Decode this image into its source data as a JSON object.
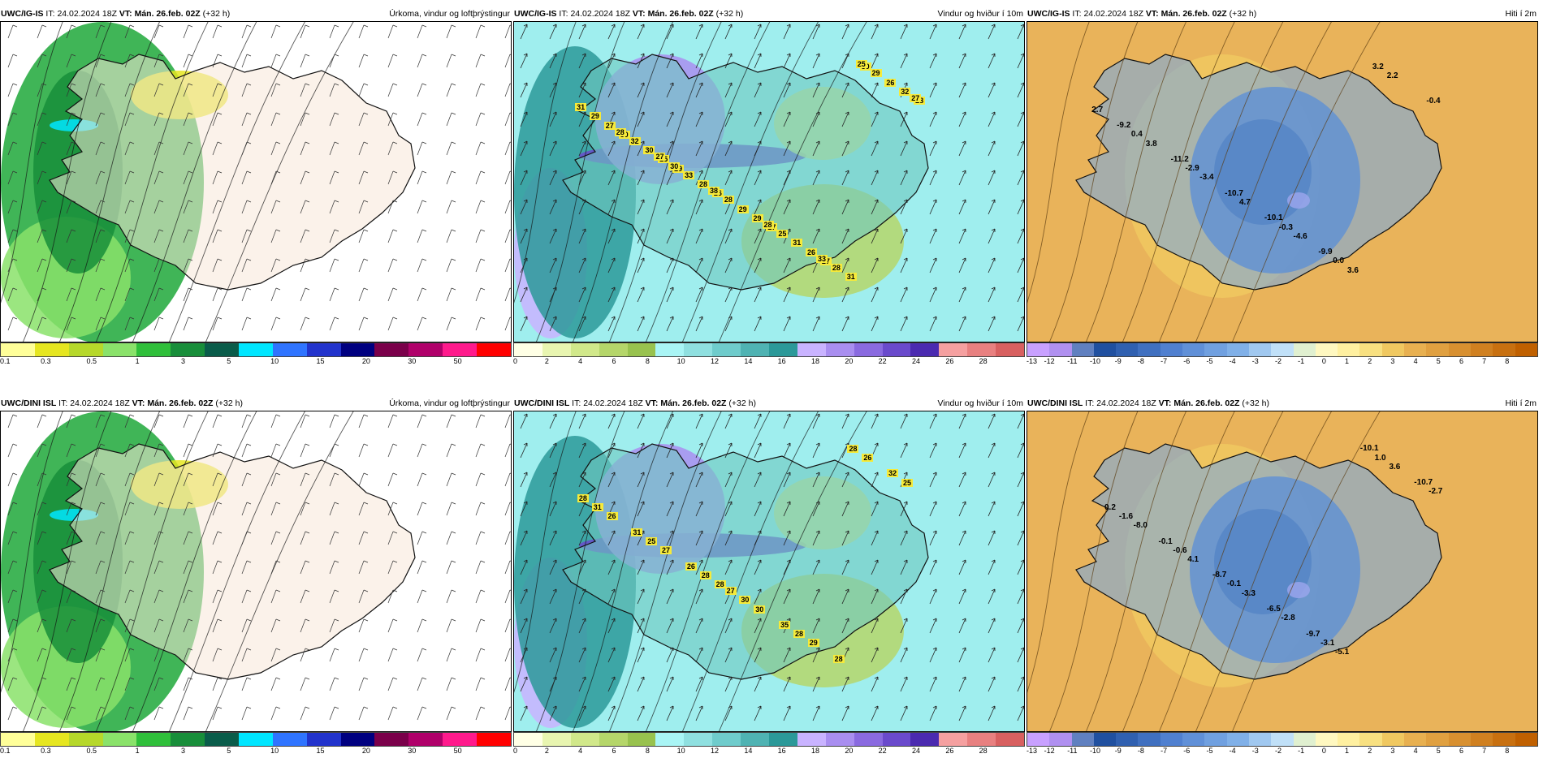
{
  "panels": [
    {
      "model": "UWC/IG-IS",
      "it_label": "IT:",
      "it_value": "24.02.2024 18Z",
      "vt_label": "VT:",
      "vt_value": "Mán. 26.feb. 02Z",
      "lead": "(+32 h)",
      "title": "Úrkoma, vindur og loftþrýstingur",
      "legend_colors": [
        "#ffff99",
        "#e6e620",
        "#b6d82a",
        "#8ae26a",
        "#2fbf3a",
        "#188e3a",
        "#0a5c4a",
        "#00e6ff",
        "#2f74ff",
        "#2233cc",
        "#000080",
        "#7a004a",
        "#b0006a",
        "#ff1a8c",
        "#ff0000"
      ],
      "ticks": [
        "0.1",
        "0.3",
        "0.5",
        "1",
        "3",
        "5",
        "10",
        "15",
        "20",
        "30",
        "50"
      ],
      "labels": []
    },
    {
      "model": "UWC/IG-IS",
      "it_label": "IT:",
      "it_value": "24.02.2024 18Z",
      "vt_label": "VT:",
      "vt_value": "Mán. 26.feb. 02Z",
      "lead": "(+32 h)",
      "title": "Vindur og hviður í 10m",
      "legend_colors": [
        "#ffffe5",
        "#e8f5b0",
        "#d1e88a",
        "#b5d66a",
        "#98c24e",
        "#a9f5f5",
        "#8fe0e0",
        "#6fcccc",
        "#4fb3b3",
        "#2b9999",
        "#c9b3ff",
        "#a98ef0",
        "#8a6ae0",
        "#6a4acc",
        "#4b2ab0",
        "#f5a0a0",
        "#e88080",
        "#d86060"
      ],
      "ticks": [
        "0",
        "2",
        "4",
        "6",
        "8",
        "10",
        "12",
        "14",
        "16",
        "18",
        "20",
        "22",
        "24",
        "26",
        "28"
      ],
      "labels": [
        "29",
        "27",
        "30",
        "27",
        "28",
        "26",
        "30",
        "25",
        "26",
        "27",
        "29",
        "32",
        "28",
        "31",
        "30",
        "31",
        "29",
        "29",
        "26",
        "33",
        "28",
        "32",
        "25",
        "31",
        "28",
        "29",
        "30",
        "33",
        "28",
        "28",
        "27",
        "38",
        "25",
        "27"
      ]
    },
    {
      "model": "UWC/IG-IS",
      "it_label": "IT:",
      "it_value": "24.02.2024 18Z",
      "vt_label": "VT:",
      "vt_value": "Mán. 26.feb. 02Z",
      "lead": "(+32 h)",
      "title": "Hiti í 2m",
      "legend_colors": [
        "#c8a0ff",
        "#b090f0",
        "#6080c0",
        "#2050a0",
        "#3060b0",
        "#4070c0",
        "#5080d0",
        "#6090d8",
        "#70a0e0",
        "#80b0e8",
        "#a0c8f0",
        "#c0e0f8",
        "#e0f0d0",
        "#fff8c0",
        "#fff0a0",
        "#f8e080",
        "#f0c860",
        "#e8b050",
        "#e0a040",
        "#d89030",
        "#d08020",
        "#c87010",
        "#c06000"
      ],
      "ticks": [
        "-13",
        "-12",
        "-11",
        "-10",
        "-9",
        "-8",
        "-7",
        "-6",
        "-5",
        "-4",
        "-3",
        "-2",
        "-1",
        "0",
        "1",
        "2",
        "3",
        "4",
        "5",
        "6",
        "7",
        "8"
      ],
      "labels": [
        "-3.4",
        "3.6",
        "3.8",
        "-4.6",
        "2.7",
        "4.7",
        "2.2",
        "-2.9",
        "0.0",
        "0.4",
        "-0.3",
        "-0.4",
        "-10.7",
        "3.2",
        "-11.2",
        "-9.9",
        "-9.2",
        "-10.1"
      ]
    },
    {
      "model": "UWC/DINI ISL",
      "it_label": "IT:",
      "it_value": "24.02.2024 18Z",
      "vt_label": "VT:",
      "vt_value": "Mán. 26.feb. 02Z",
      "lead": "(+32 h)",
      "title": "Úrkoma, vindur og loftþrýstingur",
      "legend_colors": [
        "#ffff99",
        "#e6e620",
        "#b6d82a",
        "#8ae26a",
        "#2fbf3a",
        "#188e3a",
        "#0a5c4a",
        "#00e6ff",
        "#2f74ff",
        "#2233cc",
        "#000080",
        "#7a004a",
        "#b0006a",
        "#ff1a8c",
        "#ff0000"
      ],
      "ticks": [
        "0.1",
        "0.3",
        "0.5",
        "1",
        "3",
        "5",
        "10",
        "15",
        "20",
        "30",
        "50"
      ],
      "labels": []
    },
    {
      "model": "UWC/DINI ISL",
      "it_label": "IT:",
      "it_value": "24.02.2024 18Z",
      "vt_label": "VT:",
      "vt_value": "Mán. 26.feb. 02Z",
      "lead": "(+32 h)",
      "title": "Vindur og hviður í 10m",
      "legend_colors": [
        "#ffffe5",
        "#e8f5b0",
        "#d1e88a",
        "#b5d66a",
        "#98c24e",
        "#a9f5f5",
        "#8fe0e0",
        "#6fcccc",
        "#4fb3b3",
        "#2b9999",
        "#c9b3ff",
        "#a98ef0",
        "#8a6ae0",
        "#6a4acc",
        "#4b2ab0",
        "#f5a0a0",
        "#e88080",
        "#d86060"
      ],
      "ticks": [
        "0",
        "2",
        "4",
        "6",
        "8",
        "10",
        "12",
        "14",
        "16",
        "18",
        "20",
        "22",
        "24",
        "26",
        "28"
      ],
      "labels": [
        "28",
        "26",
        "27",
        "29",
        "26",
        "30",
        "25",
        "28",
        "28",
        "25",
        "28",
        "31",
        "30",
        "32",
        "26",
        "28",
        "31",
        "35",
        "28",
        "27"
      ]
    },
    {
      "model": "UWC/DINI ISL",
      "it_label": "IT:",
      "it_value": "24.02.2024 18Z",
      "vt_label": "VT:",
      "vt_value": "Mán. 26.feb. 02Z",
      "lead": "(+32 h)",
      "title": "Hiti í 2m",
      "legend_colors": [
        "#c8a0ff",
        "#b090f0",
        "#6080c0",
        "#2050a0",
        "#3060b0",
        "#4070c0",
        "#5080d0",
        "#6090d8",
        "#70a0e0",
        "#80b0e8",
        "#a0c8f0",
        "#c0e0f8",
        "#e0f0d0",
        "#fff8c0",
        "#fff0a0",
        "#f8e080",
        "#f0c860",
        "#e8b050",
        "#e0a040",
        "#d89030",
        "#d08020",
        "#c87010",
        "#c06000"
      ],
      "ticks": [
        "-13",
        "-12",
        "-11",
        "-10",
        "-9",
        "-8",
        "-7",
        "-6",
        "-5",
        "-4",
        "-3",
        "-2",
        "-1",
        "0",
        "1",
        "2",
        "3",
        "4",
        "5",
        "6",
        "7",
        "8"
      ],
      "labels": [
        "-3.3",
        "3.6",
        "4.1",
        "-5.1",
        "-8.0",
        "-2.8",
        "-2.7",
        "-0.1",
        "1.0",
        "-0.6",
        "-3.1",
        "-1.6",
        "-6.5",
        "-10.7",
        "-8.7",
        "-10.1",
        "-0.1",
        "-9.7",
        "0.2"
      ]
    }
  ]
}
